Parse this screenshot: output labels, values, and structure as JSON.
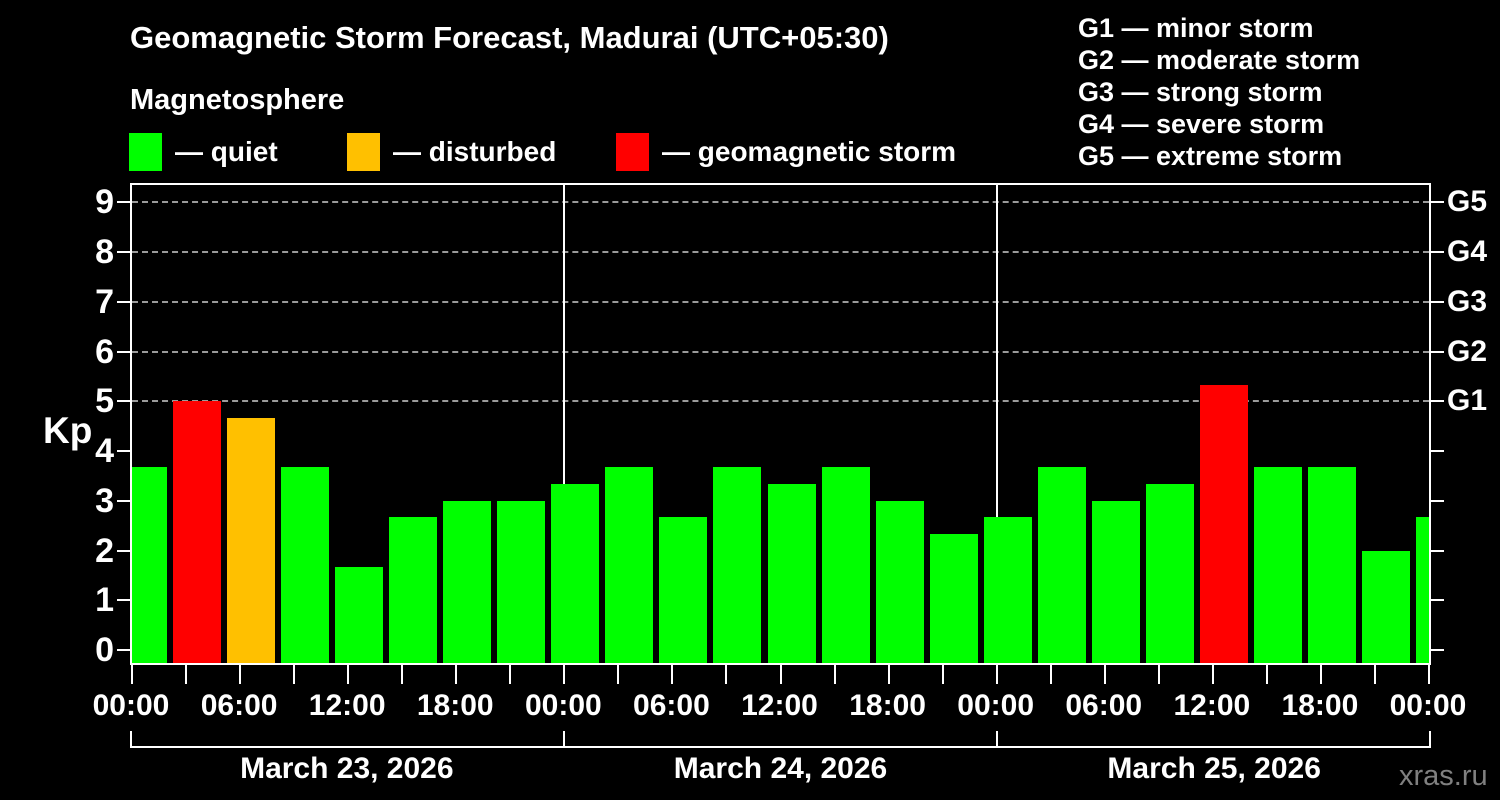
{
  "title": "Geomagnetic Storm Forecast, Madurai (UTC+05:30)",
  "subtitle": "Magnetosphere",
  "legend": {
    "items": [
      {
        "label": "— quiet",
        "status": "quiet",
        "color": "#00ff00"
      },
      {
        "label": "— disturbed",
        "status": "disturbed",
        "color": "#ffc000"
      },
      {
        "label": "— geomagnetic storm",
        "status": "storm",
        "color": "#ff0000"
      }
    ]
  },
  "g_scale_legend": [
    "G1 — minor storm",
    "G2 — moderate storm",
    "G3 — strong storm",
    "G4 — severe storm",
    "G5 — extreme storm"
  ],
  "watermark": "xras.ru",
  "chart_data": {
    "type": "bar",
    "title": "Geomagnetic Storm Forecast, Madurai (UTC+05:30)",
    "ylabel": "Kp",
    "ylim": [
      -0.3,
      9.4
    ],
    "grid": "horizontal dashed gridlines at Kp 5-9 only",
    "gridlines": [
      5,
      6,
      7,
      8,
      9
    ],
    "y_ticks": [
      0,
      1,
      2,
      3,
      4,
      5,
      6,
      7,
      8,
      9
    ],
    "right_axis": {
      "labels": [
        {
          "kp": 5,
          "label": "G1"
        },
        {
          "kp": 6,
          "label": "G2"
        },
        {
          "kp": 7,
          "label": "G3"
        },
        {
          "kp": 8,
          "label": "G4"
        },
        {
          "kp": 9,
          "label": "G5"
        }
      ]
    },
    "x_time_labels": [
      "00:00",
      "06:00",
      "12:00",
      "18:00",
      "00:00",
      "06:00",
      "12:00",
      "18:00",
      "00:00",
      "06:00",
      "12:00",
      "18:00",
      "00:00"
    ],
    "x_tick_interval_hours": 3,
    "bar_interval_hours": 3,
    "dates": [
      "March 23, 2026",
      "March 24, 2026",
      "March 25, 2026"
    ],
    "colors": {
      "quiet": "#00ff00",
      "disturbed": "#ffc000",
      "storm": "#ff0000"
    },
    "bars": [
      {
        "kp": 3.67,
        "status": "quiet"
      },
      {
        "kp": 5.0,
        "status": "storm"
      },
      {
        "kp": 4.67,
        "status": "disturbed"
      },
      {
        "kp": 3.67,
        "status": "quiet"
      },
      {
        "kp": 1.67,
        "status": "quiet"
      },
      {
        "kp": 2.67,
        "status": "quiet"
      },
      {
        "kp": 3.0,
        "status": "quiet"
      },
      {
        "kp": 3.0,
        "status": "quiet"
      },
      {
        "kp": 3.33,
        "status": "quiet"
      },
      {
        "kp": 3.67,
        "status": "quiet"
      },
      {
        "kp": 2.67,
        "status": "quiet"
      },
      {
        "kp": 3.67,
        "status": "quiet"
      },
      {
        "kp": 3.33,
        "status": "quiet"
      },
      {
        "kp": 3.67,
        "status": "quiet"
      },
      {
        "kp": 3.0,
        "status": "quiet"
      },
      {
        "kp": 2.33,
        "status": "quiet"
      },
      {
        "kp": 2.67,
        "status": "quiet"
      },
      {
        "kp": 3.67,
        "status": "quiet"
      },
      {
        "kp": 3.0,
        "status": "quiet"
      },
      {
        "kp": 3.33,
        "status": "quiet"
      },
      {
        "kp": 5.33,
        "status": "storm"
      },
      {
        "kp": 3.67,
        "status": "quiet"
      },
      {
        "kp": 3.67,
        "status": "quiet"
      },
      {
        "kp": 2.0,
        "status": "quiet"
      },
      {
        "kp": 2.67,
        "status": "quiet",
        "partial": true
      }
    ]
  }
}
